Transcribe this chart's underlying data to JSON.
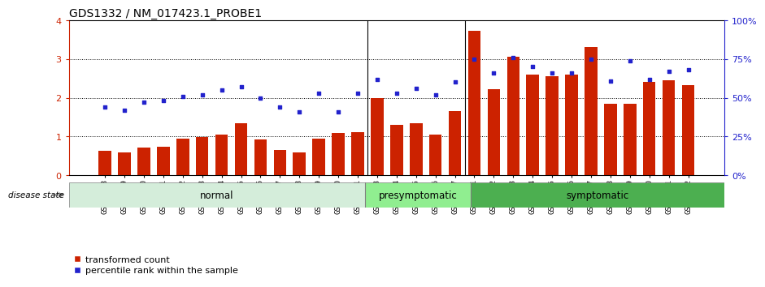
{
  "title": "GDS1332 / NM_017423.1_PROBE1",
  "samples": [
    "GSM30698",
    "GSM30699",
    "GSM30700",
    "GSM30701",
    "GSM30702",
    "GSM30703",
    "GSM30704",
    "GSM30705",
    "GSM30706",
    "GSM30707",
    "GSM30708",
    "GSM30709",
    "GSM30710",
    "GSM30711",
    "GSM30693",
    "GSM30694",
    "GSM30695",
    "GSM30696",
    "GSM30697",
    "GSM30681",
    "GSM30682",
    "GSM30683",
    "GSM30684",
    "GSM30685",
    "GSM30686",
    "GSM30687",
    "GSM30688",
    "GSM30689",
    "GSM30690",
    "GSM30691",
    "GSM30692"
  ],
  "bar_values": [
    0.63,
    0.6,
    0.72,
    0.73,
    0.95,
    0.98,
    1.05,
    1.35,
    0.93,
    0.65,
    0.6,
    0.95,
    1.1,
    1.12,
    2.0,
    1.3,
    1.35,
    1.05,
    1.65,
    3.72,
    2.22,
    3.05,
    2.6,
    2.55,
    2.6,
    3.3,
    1.85,
    1.85,
    2.42,
    2.45,
    2.32
  ],
  "blue_values": [
    44,
    42,
    47,
    48,
    51,
    52,
    55,
    57,
    50,
    44,
    41,
    53,
    41,
    53,
    62,
    53,
    56,
    52,
    60,
    75,
    66,
    76,
    70,
    66,
    66,
    75,
    61,
    74,
    62,
    67,
    68
  ],
  "groups": [
    {
      "label": "normal",
      "start": 0,
      "end": 14,
      "color": "#d4edda"
    },
    {
      "label": "presymptomatic",
      "start": 14,
      "end": 19,
      "color": "#90ee90"
    },
    {
      "label": "symptomatic",
      "start": 19,
      "end": 31,
      "color": "#4caf50"
    }
  ],
  "group_boundaries": [
    14,
    19
  ],
  "bar_color": "#cc2200",
  "blue_color": "#2222cc",
  "ylim_left": [
    0,
    4
  ],
  "ylim_right": [
    0,
    100
  ],
  "yticks_left": [
    0,
    1,
    2,
    3,
    4
  ],
  "yticks_right": [
    0,
    25,
    50,
    75,
    100
  ],
  "disease_state_label": "disease state",
  "legend_bar": "transformed count",
  "legend_blue": "percentile rank within the sample",
  "bg_color": "#ffffff",
  "title_fontsize": 10,
  "tick_fontsize": 6.5,
  "group_label_fontsize": 8.5
}
